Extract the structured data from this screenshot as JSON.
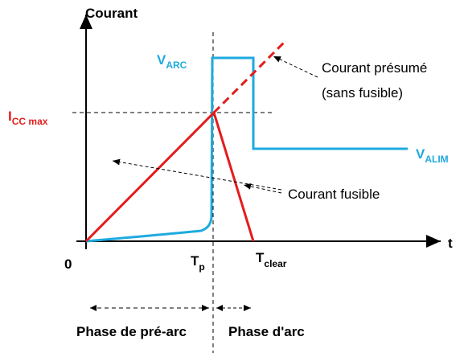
{
  "labels": {
    "y_axis": "Courant",
    "v_arc": {
      "main": "V",
      "sub": "ARC"
    },
    "presumed_1": "Courant présumé",
    "presumed_2": "(sans fusible)",
    "icc": {
      "main": "I",
      "sub": "CC max"
    },
    "v_alim": {
      "main": "V",
      "sub": "ALIM"
    },
    "fuse_current": "Courant fusible",
    "origin": "0",
    "tp": {
      "main": "T",
      "sub": "p"
    },
    "tclear": {
      "main": "T",
      "sub": "clear"
    },
    "t": "t",
    "phase_prearc": "Phase de pré-arc",
    "phase_arc": "Phase d'arc"
  }
}
